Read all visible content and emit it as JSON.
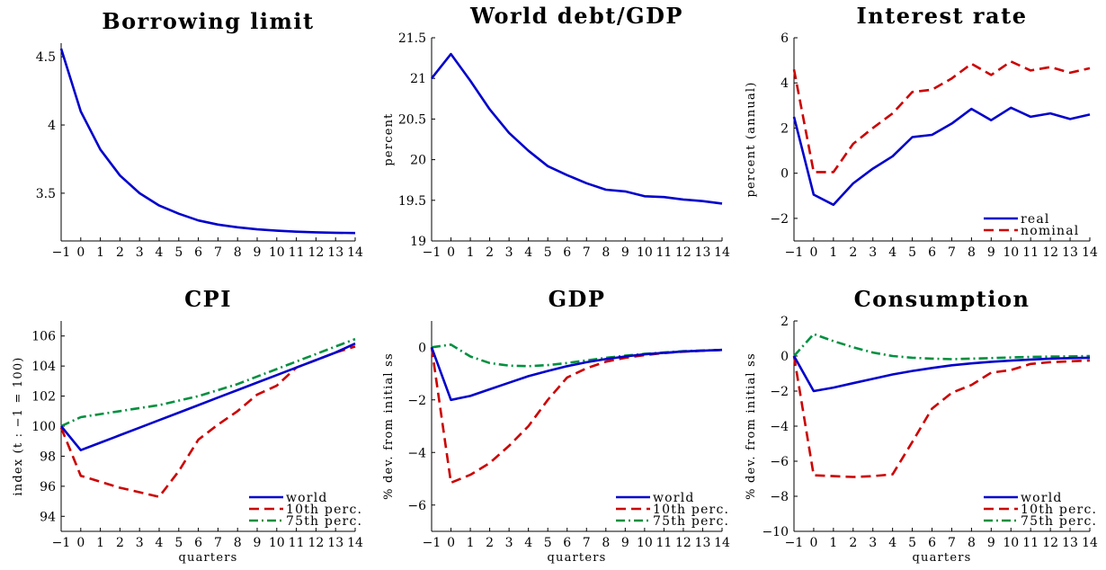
{
  "figure": {
    "xlabel": "quarters",
    "colors": {
      "world": "#0000cc",
      "tenth": "#cc0000",
      "seventy_fifth": "#009040",
      "axis": "#000000"
    }
  },
  "chart_data": [
    {
      "type": "line",
      "title": "Borrowing limit",
      "xlabel": "",
      "ylabel": "",
      "x": [
        -1,
        0,
        1,
        2,
        3,
        4,
        5,
        6,
        7,
        8,
        9,
        10,
        11,
        12,
        13,
        14
      ],
      "xlim": [
        -1,
        14
      ],
      "ylim": [
        3.15,
        4.6
      ],
      "yticks": [
        3.5,
        4,
        4.5
      ],
      "ytick_labels": [
        "3.5",
        "4",
        "4.5"
      ],
      "legend": "none",
      "series": [
        {
          "values": [
            4.56,
            4.1,
            3.82,
            3.63,
            3.5,
            3.41,
            3.35,
            3.3,
            3.27,
            3.25,
            3.235,
            3.225,
            3.218,
            3.213,
            3.21,
            3.208
          ],
          "color": "#0000cc",
          "style": "solid"
        }
      ]
    },
    {
      "type": "line",
      "title": "World debt/GDP",
      "xlabel": "",
      "ylabel": "percent",
      "x": [
        -1,
        0,
        1,
        2,
        3,
        4,
        5,
        6,
        7,
        8,
        9,
        10,
        11,
        12,
        13,
        14
      ],
      "xlim": [
        -1,
        14
      ],
      "ylim": [
        19,
        21.5
      ],
      "yticks": [
        19,
        19.5,
        20,
        20.5,
        21,
        21.5
      ],
      "ytick_labels": [
        "19",
        "19.5",
        "20",
        "20.5",
        "21",
        "21.5"
      ],
      "legend": "none",
      "series": [
        {
          "values": [
            21.0,
            21.3,
            20.97,
            20.62,
            20.33,
            20.11,
            19.92,
            19.81,
            19.71,
            19.63,
            19.61,
            19.55,
            19.54,
            19.51,
            19.49,
            19.46
          ],
          "color": "#0000cc",
          "style": "solid"
        }
      ]
    },
    {
      "type": "line",
      "title": "Interest rate",
      "xlabel": "",
      "ylabel": "percent (annual)",
      "x": [
        -1,
        0,
        1,
        2,
        3,
        4,
        5,
        6,
        7,
        8,
        9,
        10,
        11,
        12,
        13,
        14
      ],
      "xlim": [
        -1,
        14
      ],
      "ylim": [
        -3,
        6
      ],
      "yticks": [
        -2,
        0,
        2,
        4,
        6
      ],
      "ytick_labels": [
        "−2",
        "0",
        "2",
        "4",
        "6"
      ],
      "legend": "bottom-right",
      "series": [
        {
          "name": "real",
          "values": [
            2.5,
            -0.95,
            -1.4,
            -0.45,
            0.2,
            0.75,
            1.6,
            1.7,
            2.2,
            2.85,
            2.35,
            2.9,
            2.5,
            2.65,
            2.4,
            2.6
          ],
          "color": "#0000cc",
          "style": "solid"
        },
        {
          "name": "nominal",
          "values": [
            4.6,
            0.05,
            0.05,
            1.3,
            2.0,
            2.65,
            3.6,
            3.7,
            4.2,
            4.85,
            4.35,
            4.95,
            4.55,
            4.7,
            4.45,
            4.65
          ],
          "color": "#cc0000",
          "style": "dashed"
        }
      ]
    },
    {
      "type": "line",
      "title": "CPI",
      "xlabel": "quarters",
      "ylabel": "index (t : −1 = 100)",
      "x": [
        -1,
        0,
        1,
        2,
        3,
        4,
        5,
        6,
        7,
        8,
        9,
        10,
        11,
        12,
        13,
        14
      ],
      "xlim": [
        -1,
        14
      ],
      "ylim": [
        93,
        107
      ],
      "yticks": [
        94,
        96,
        98,
        100,
        102,
        104,
        106
      ],
      "ytick_labels": [
        "94",
        "96",
        "98",
        "100",
        "102",
        "104",
        "106"
      ],
      "legend": "bottom-right",
      "series": [
        {
          "name": "world",
          "values": [
            100,
            98.4,
            98.9,
            99.4,
            99.9,
            100.4,
            100.9,
            101.4,
            101.9,
            102.4,
            102.9,
            103.4,
            103.9,
            104.4,
            104.9,
            105.5
          ],
          "color": "#0000cc",
          "style": "solid"
        },
        {
          "name": "10th perc.",
          "values": [
            99.9,
            96.7,
            96.3,
            95.9,
            95.6,
            95.3,
            97.0,
            99.1,
            100.1,
            101.0,
            102.1,
            102.7,
            103.9,
            104.4,
            104.9,
            105.3
          ],
          "color": "#cc0000",
          "style": "dashed"
        },
        {
          "name": "75th perc.",
          "values": [
            100.0,
            100.6,
            100.8,
            101.0,
            101.2,
            101.4,
            101.7,
            102.0,
            102.4,
            102.8,
            103.3,
            103.8,
            104.3,
            104.8,
            105.3,
            105.8
          ],
          "color": "#009040",
          "style": "dashdot"
        }
      ]
    },
    {
      "type": "line",
      "title": "GDP",
      "xlabel": "quarters",
      "ylabel": "% dev. from initial ss",
      "x": [
        -1,
        0,
        1,
        2,
        3,
        4,
        5,
        6,
        7,
        8,
        9,
        10,
        11,
        12,
        13,
        14
      ],
      "xlim": [
        -1,
        14
      ],
      "ylim": [
        -7,
        1
      ],
      "yticks": [
        -6,
        -4,
        -2,
        0
      ],
      "ytick_labels": [
        "−6",
        "−4",
        "−2",
        "0"
      ],
      "legend": "bottom-right",
      "series": [
        {
          "name": "world",
          "values": [
            0,
            -2.0,
            -1.85,
            -1.6,
            -1.35,
            -1.1,
            -0.9,
            -0.72,
            -0.57,
            -0.45,
            -0.35,
            -0.27,
            -0.21,
            -0.16,
            -0.13,
            -0.1
          ],
          "color": "#0000cc",
          "style": "solid"
        },
        {
          "name": "10th perc.",
          "values": [
            0,
            -5.15,
            -4.85,
            -4.4,
            -3.75,
            -3.0,
            -2.0,
            -1.15,
            -0.8,
            -0.55,
            -0.4,
            -0.3,
            -0.22,
            -0.17,
            -0.13,
            -0.1
          ],
          "color": "#cc0000",
          "style": "dashed"
        },
        {
          "name": "75th perc.",
          "values": [
            0,
            0.1,
            -0.35,
            -0.6,
            -0.7,
            -0.72,
            -0.68,
            -0.6,
            -0.5,
            -0.4,
            -0.32,
            -0.25,
            -0.2,
            -0.15,
            -0.12,
            -0.1
          ],
          "color": "#009040",
          "style": "dashdot"
        }
      ]
    },
    {
      "type": "line",
      "title": "Consumption",
      "xlabel": "quarters",
      "ylabel": "% dev. from initial ss",
      "x": [
        -1,
        0,
        1,
        2,
        3,
        4,
        5,
        6,
        7,
        8,
        9,
        10,
        11,
        12,
        13,
        14
      ],
      "xlim": [
        -1,
        14
      ],
      "ylim": [
        -10,
        2
      ],
      "yticks": [
        -10,
        -8,
        -6,
        -4,
        -2,
        0,
        2
      ],
      "ytick_labels": [
        "−10",
        "−8",
        "−6",
        "−4",
        "−2",
        "0",
        "2"
      ],
      "legend": "bottom-right",
      "series": [
        {
          "name": "world",
          "values": [
            0,
            -2.0,
            -1.8,
            -1.55,
            -1.3,
            -1.05,
            -0.85,
            -0.68,
            -0.53,
            -0.42,
            -0.33,
            -0.26,
            -0.2,
            -0.15,
            -0.12,
            -0.1
          ],
          "color": "#0000cc",
          "style": "solid"
        },
        {
          "name": "10th perc.",
          "values": [
            0,
            -6.8,
            -6.85,
            -6.9,
            -6.85,
            -6.75,
            -4.9,
            -3.0,
            -2.1,
            -1.65,
            -0.95,
            -0.8,
            -0.45,
            -0.35,
            -0.3,
            -0.25
          ],
          "color": "#cc0000",
          "style": "dashed"
        },
        {
          "name": "75th perc.",
          "values": [
            0,
            1.25,
            0.85,
            0.5,
            0.2,
            0.0,
            -0.1,
            -0.15,
            -0.18,
            -0.15,
            -0.12,
            -0.08,
            -0.05,
            -0.03,
            -0.02,
            0.0
          ],
          "color": "#009040",
          "style": "dashdot"
        }
      ]
    }
  ]
}
